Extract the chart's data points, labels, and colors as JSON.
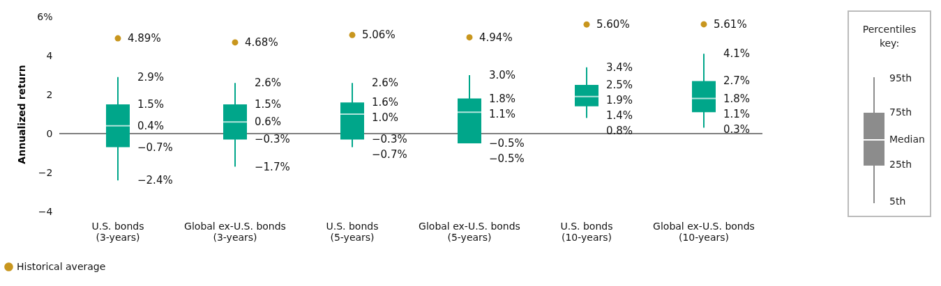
{
  "chart_data": {
    "type": "box",
    "categories": [
      "U.S. bonds (3-years)",
      "Global ex-U.S. bonds (3-years)",
      "U.S. bonds (5-years)",
      "Global ex-U.S. bonds (5-years)",
      "U.S. bonds (10-years)",
      "Global ex-U.S. bonds (10-years)"
    ],
    "ylabel": "Annualized return",
    "ylim": [
      -4,
      6
    ],
    "yticks": [
      {
        "value": -4,
        "label": "−4"
      },
      {
        "value": -2,
        "label": "−2"
      },
      0,
      2,
      4,
      {
        "value": 6,
        "label": "6%"
      }
    ],
    "series": [
      {
        "color": "#00a68a",
        "boxes": [
          {
            "low": -2.4,
            "q1": -0.7,
            "median": 0.4,
            "q3": 1.5,
            "high": 2.9
          },
          {
            "low": -1.7,
            "q1": -0.3,
            "median": 0.6,
            "q3": 1.5,
            "high": 2.6
          },
          {
            "low": -0.7,
            "q1": -0.3,
            "median": 1.0,
            "q3": 1.6,
            "high": 2.6
          },
          {
            "low": -0.5,
            "q1": -0.5,
            "median": 1.1,
            "q3": 1.8,
            "high": 3.0
          },
          {
            "low": 0.8,
            "q1": 1.4,
            "median": 1.9,
            "q3": 2.5,
            "high": 3.4
          },
          {
            "low": 0.3,
            "q1": 1.1,
            "median": 1.8,
            "q3": 2.7,
            "high": 4.1
          }
        ],
        "value_labels": [
          [
            "2.9%",
            "1.5%",
            "0.4%",
            "−0.7%",
            "−2.4%"
          ],
          [
            "2.6%",
            "1.5%",
            "0.6%",
            "−0.3%",
            "−1.7%"
          ],
          [
            "2.6%",
            "1.6%",
            "1.0%",
            "−0.3%",
            "−0.7%"
          ],
          [
            "3.0%",
            "1.8%",
            "1.1%",
            "−0.5%",
            "−0.5%"
          ],
          [
            "3.4%",
            "2.5%",
            "1.9%",
            "1.4%",
            "0.8%"
          ],
          [
            "4.1%",
            "2.7%",
            "1.8%",
            "1.1%",
            "0.3%"
          ]
        ]
      },
      {
        "type": "scatter",
        "name": "Historical average",
        "color": "#c8961e",
        "values": [
          4.89,
          4.68,
          5.06,
          4.94,
          5.6,
          5.61
        ],
        "value_labels": [
          "4.89%",
          "4.68%",
          "5.06%",
          "4.94%",
          "5.60%",
          "5.61%"
        ]
      }
    ],
    "ref_lines": [
      {
        "axis": "y",
        "value": 0,
        "color": "#000000"
      }
    ],
    "grid": false,
    "marker": "circle",
    "legend": "bottom left",
    "legend_title": "Percentiles key:",
    "annotations": [
      "95th",
      "75th",
      "Median",
      "25th",
      "5th"
    ]
  }
}
